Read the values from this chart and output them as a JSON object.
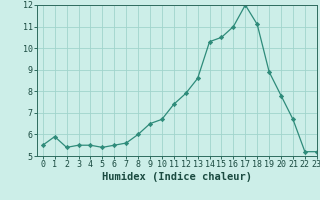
{
  "x": [
    0,
    1,
    2,
    3,
    4,
    5,
    6,
    7,
    8,
    9,
    10,
    11,
    12,
    13,
    14,
    15,
    16,
    17,
    18,
    19,
    20,
    21,
    22,
    23
  ],
  "y": [
    5.5,
    5.9,
    5.4,
    5.5,
    5.5,
    5.4,
    5.5,
    5.6,
    6.0,
    6.5,
    6.7,
    7.4,
    7.9,
    8.6,
    10.3,
    10.5,
    11.0,
    12.0,
    11.1,
    8.9,
    7.8,
    6.7,
    5.2,
    5.2
  ],
  "line_color": "#2e8b7a",
  "marker_color": "#2e8b7a",
  "bg_color": "#cceee8",
  "grid_color": "#a0d4cc",
  "tick_color": "#2e6b5e",
  "label_color": "#1a4a40",
  "xlabel": "Humidex (Indice chaleur)",
  "ylim": [
    5,
    12
  ],
  "xlim": [
    -0.5,
    23
  ],
  "yticks": [
    5,
    6,
    7,
    8,
    9,
    10,
    11,
    12
  ],
  "xticks": [
    0,
    1,
    2,
    3,
    4,
    5,
    6,
    7,
    8,
    9,
    10,
    11,
    12,
    13,
    14,
    15,
    16,
    17,
    18,
    19,
    20,
    21,
    22,
    23
  ],
  "font_size_label": 7.5,
  "font_size_tick": 6.0
}
